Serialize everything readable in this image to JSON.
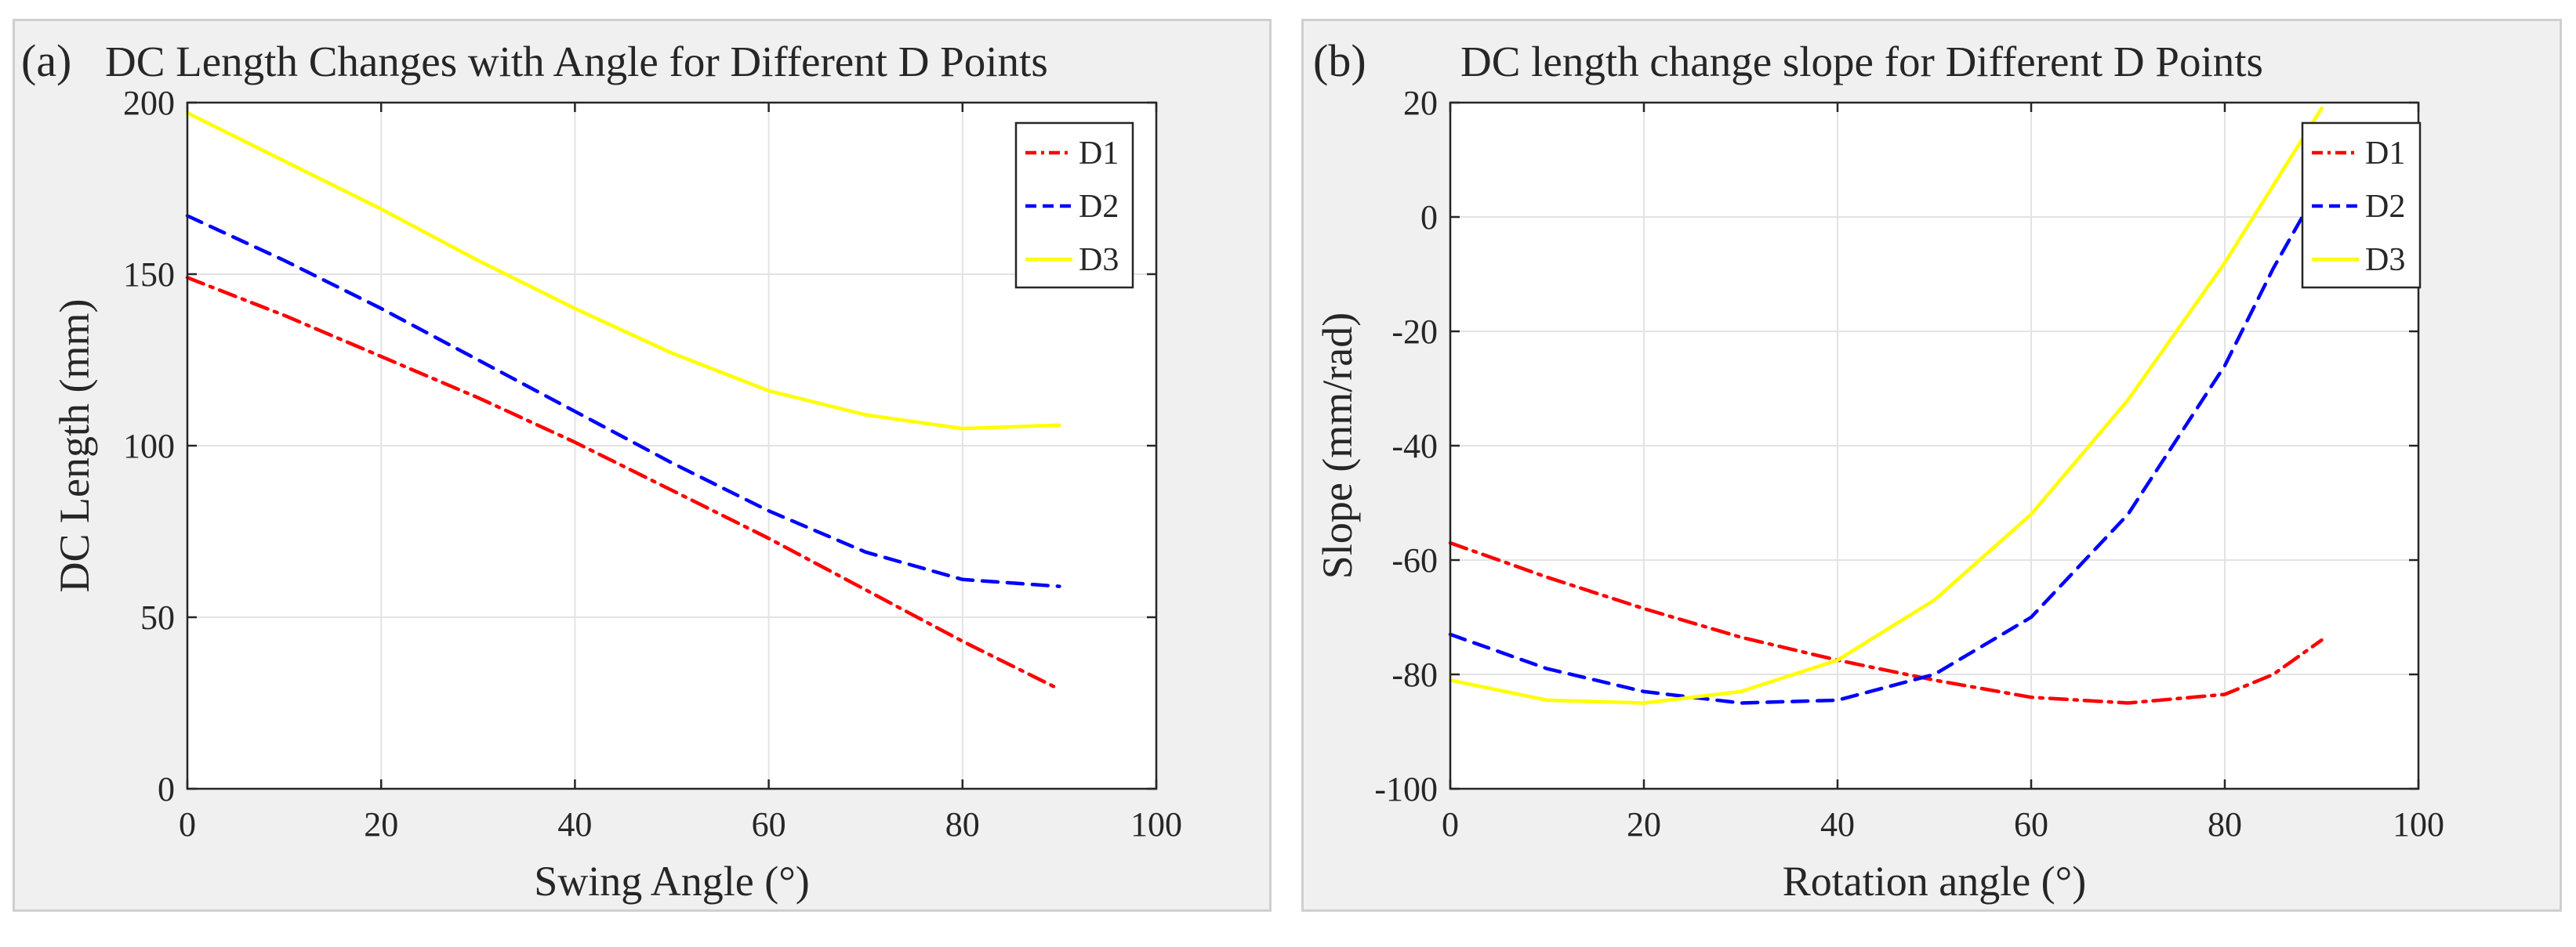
{
  "chart_data": [
    {
      "type": "line",
      "panel_label": "(a)",
      "title": "DC Length Changes with Angle for Different D Points",
      "xlabel": "Swing Angle (°)",
      "ylabel": "DC Length (mm)",
      "xlim": [
        0,
        100
      ],
      "ylim": [
        0,
        200
      ],
      "xticks": [
        0,
        20,
        40,
        60,
        80,
        100
      ],
      "yticks": [
        0,
        50,
        100,
        150,
        200
      ],
      "grid": true,
      "legend": "top-right",
      "series": [
        {
          "name": "D1",
          "color": "#ff0000",
          "style": "dashdot",
          "x": [
            0,
            10,
            20,
            30,
            40,
            50,
            60,
            70,
            80,
            90
          ],
          "y": [
            149,
            138,
            126,
            114,
            101,
            87,
            73,
            58,
            43,
            29
          ]
        },
        {
          "name": "D2",
          "color": "#0000ff",
          "style": "dashed",
          "x": [
            0,
            10,
            20,
            30,
            40,
            50,
            60,
            70,
            80,
            90
          ],
          "y": [
            167,
            154,
            140,
            125,
            110,
            95,
            81,
            69,
            61,
            59
          ]
        },
        {
          "name": "D3",
          "color": "#ffff00",
          "style": "solid",
          "x": [
            0,
            10,
            20,
            30,
            40,
            50,
            60,
            70,
            80,
            90
          ],
          "y": [
            197,
            183,
            169,
            154,
            140,
            127,
            116,
            109,
            105,
            106
          ]
        }
      ]
    },
    {
      "type": "line",
      "panel_label": "(b)",
      "title": "DC length change slope for Different D Points",
      "xlabel": "Rotation angle (°)",
      "ylabel": "Slope (mm/rad)",
      "xlim": [
        0,
        100
      ],
      "ylim": [
        -100,
        20
      ],
      "xticks": [
        0,
        20,
        40,
        60,
        80,
        100
      ],
      "yticks": [
        -100,
        -80,
        -60,
        -40,
        -20,
        0,
        20
      ],
      "grid": true,
      "legend": "top-right",
      "series": [
        {
          "name": "D1",
          "color": "#ff0000",
          "style": "dashdot",
          "x": [
            0,
            10,
            20,
            30,
            40,
            50,
            60,
            70,
            80,
            85,
            90
          ],
          "y": [
            -57,
            -63,
            -68.5,
            -73.5,
            -77.5,
            -81,
            -84,
            -85,
            -83.5,
            -80,
            -74
          ]
        },
        {
          "name": "D2",
          "color": "#0000ff",
          "style": "dashed",
          "x": [
            0,
            10,
            20,
            30,
            40,
            50,
            60,
            70,
            80,
            85,
            88
          ],
          "y": [
            -73,
            -79,
            -83,
            -85,
            -84.5,
            -80,
            -70,
            -52,
            -26,
            -9,
            0
          ]
        },
        {
          "name": "D3",
          "color": "#ffff00",
          "style": "solid",
          "x": [
            0,
            10,
            20,
            30,
            40,
            50,
            60,
            70,
            80,
            90
          ],
          "y": [
            -81,
            -84.5,
            -85,
            -83,
            -77.5,
            -67,
            -52,
            -32,
            -8,
            19
          ]
        }
      ]
    }
  ]
}
